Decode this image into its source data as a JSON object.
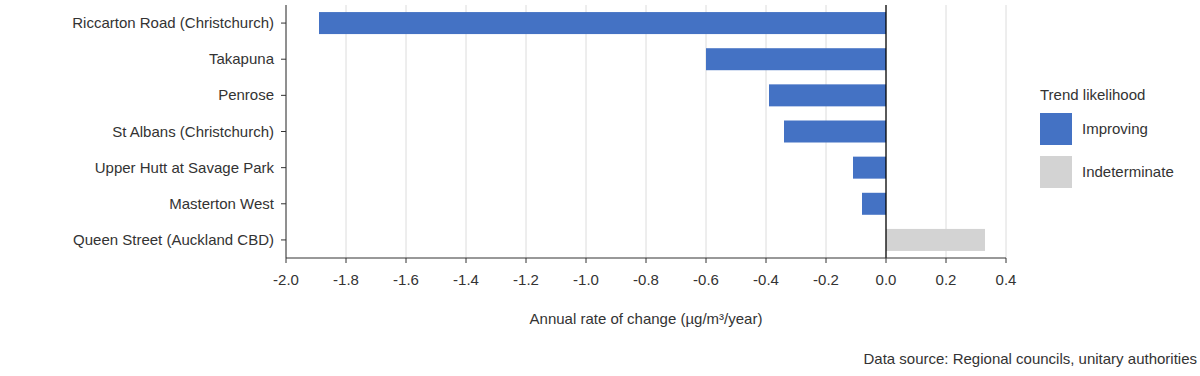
{
  "chart_data": {
    "type": "bar",
    "orientation": "horizontal",
    "categories": [
      "Riccarton Road (Christchurch)",
      "Takapuna",
      "Penrose",
      "St Albans (Christchurch)",
      "Upper Hutt at Savage Park",
      "Masterton West",
      "Queen Street (Auckland CBD)"
    ],
    "series": [
      {
        "name": "Improving",
        "color": "#4472c4",
        "values": [
          -1.89,
          -0.6,
          -0.39,
          -0.34,
          -0.11,
          -0.08,
          null
        ]
      },
      {
        "name": "Indeterminate",
        "color": "#d3d3d3",
        "values": [
          null,
          null,
          null,
          null,
          null,
          null,
          0.33
        ]
      }
    ],
    "xlim": [
      -2.0,
      0.4
    ],
    "xticks": [
      {
        "value": -2.0,
        "label": "-2.0"
      },
      -1.8,
      -1.6,
      -1.4,
      -1.2,
      {
        "value": -1.0,
        "label": "-1.0"
      },
      -0.8,
      -0.6,
      -0.4,
      -0.2,
      {
        "value": 0.0,
        "label": "0.0"
      },
      0.2,
      0.4
    ],
    "x_label": "Annual rate of change (µg/m³/year)",
    "legend_title": "Trend likelihood",
    "legend": "right",
    "grid": true,
    "source": "Data source: Regional councils, unitary authorities"
  }
}
